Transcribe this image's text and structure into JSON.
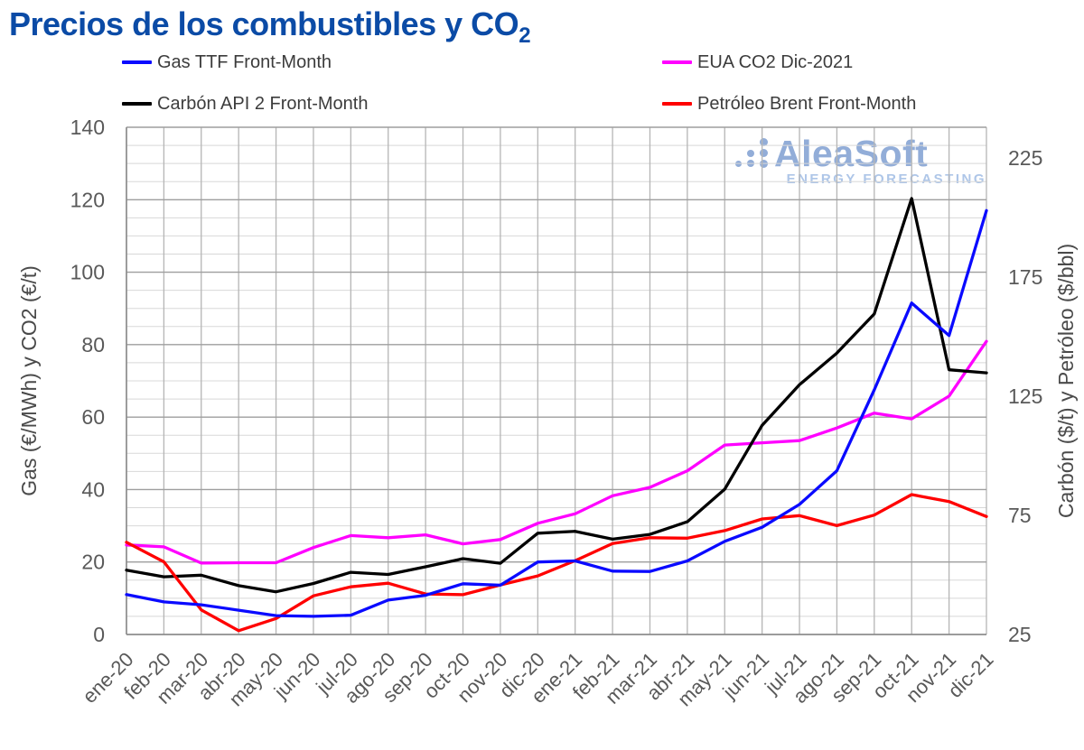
{
  "page": {
    "title": "Precios de los combustibles y CO",
    "title_subscript": "2"
  },
  "watermark": {
    "brand": "AleaSoft",
    "tagline": "ENERGY FORECASTING",
    "brand_color": "#92add8",
    "tagline_color": "#aec6e8"
  },
  "chart_data": {
    "type": "line",
    "title": "Precios de los combustibles y CO2",
    "x_categories": [
      "ene-20",
      "feb-20",
      "mar-20",
      "abr-20",
      "may-20",
      "jun-20",
      "jul-20",
      "ago-20",
      "sep-20",
      "oct-20",
      "nov-20",
      "dic-20",
      "ene-21",
      "feb-21",
      "mar-21",
      "abr-21",
      "may-21",
      "jun-21",
      "jul-21",
      "ago-21",
      "sep-21",
      "oct-21",
      "nov-21",
      "dic-21"
    ],
    "left_axis": {
      "label": "Gas (€/MWh) y CO2 (€/t)",
      "min": 0,
      "max": 140,
      "ticks": [
        0,
        20,
        40,
        60,
        80,
        100,
        120,
        140
      ]
    },
    "right_axis": {
      "label": "Carbón ($/t) y Petróleo ($/bbl)",
      "min": 25,
      "max": 225,
      "ticks": [
        25,
        75,
        125,
        175,
        225
      ]
    },
    "grid": {
      "minor_step_left_units": 5,
      "major_step_left_units": 20,
      "vertical_per_month": true
    },
    "legend_position": "top",
    "series": [
      {
        "name": "Gas TTF Front-Month",
        "axis": "left",
        "unit": "€/MWh",
        "color": "#0a0aff",
        "values": [
          11.0,
          9.0,
          8.2,
          6.7,
          5.2,
          5.0,
          5.3,
          9.5,
          10.8,
          14.0,
          13.6,
          20.0,
          20.3,
          17.5,
          17.4,
          20.3,
          25.7,
          29.6,
          35.9,
          45.2,
          67.5,
          91.5,
          82.5,
          117.0
        ]
      },
      {
        "name": "EUA CO2 Dic-2021",
        "axis": "left",
        "unit": "€/t",
        "color": "#ff00ff",
        "values": [
          24.7,
          24.2,
          19.7,
          19.8,
          19.8,
          24.0,
          27.3,
          26.7,
          27.5,
          25.0,
          26.2,
          30.7,
          33.3,
          38.3,
          40.6,
          45.2,
          52.3,
          52.9,
          53.5,
          57.0,
          61.1,
          59.5,
          65.8,
          80.9
        ]
      },
      {
        "name": "Carbón API 2 Front-Month",
        "axis": "right",
        "unit": "$/t",
        "color": "#000000",
        "values": [
          52.0,
          49.2,
          49.9,
          45.5,
          42.9,
          46.4,
          51.1,
          50.2,
          53.4,
          56.8,
          54.9,
          67.5,
          68.3,
          65.0,
          67.0,
          72.3,
          86.0,
          112.8,
          129.8,
          143.1,
          159.5,
          208.0,
          136.1,
          134.8
        ]
      },
      {
        "name": "Petróleo Brent Front-Month",
        "axis": "right",
        "unit": "$/bbl",
        "color": "#ff0000",
        "values": [
          63.7,
          55.5,
          35.3,
          26.6,
          31.7,
          41.2,
          45.0,
          46.5,
          42.0,
          41.7,
          45.8,
          49.6,
          56.0,
          63.2,
          65.6,
          65.4,
          68.6,
          73.5,
          74.9,
          70.7,
          75.1,
          83.7,
          80.8,
          74.5
        ]
      }
    ]
  }
}
